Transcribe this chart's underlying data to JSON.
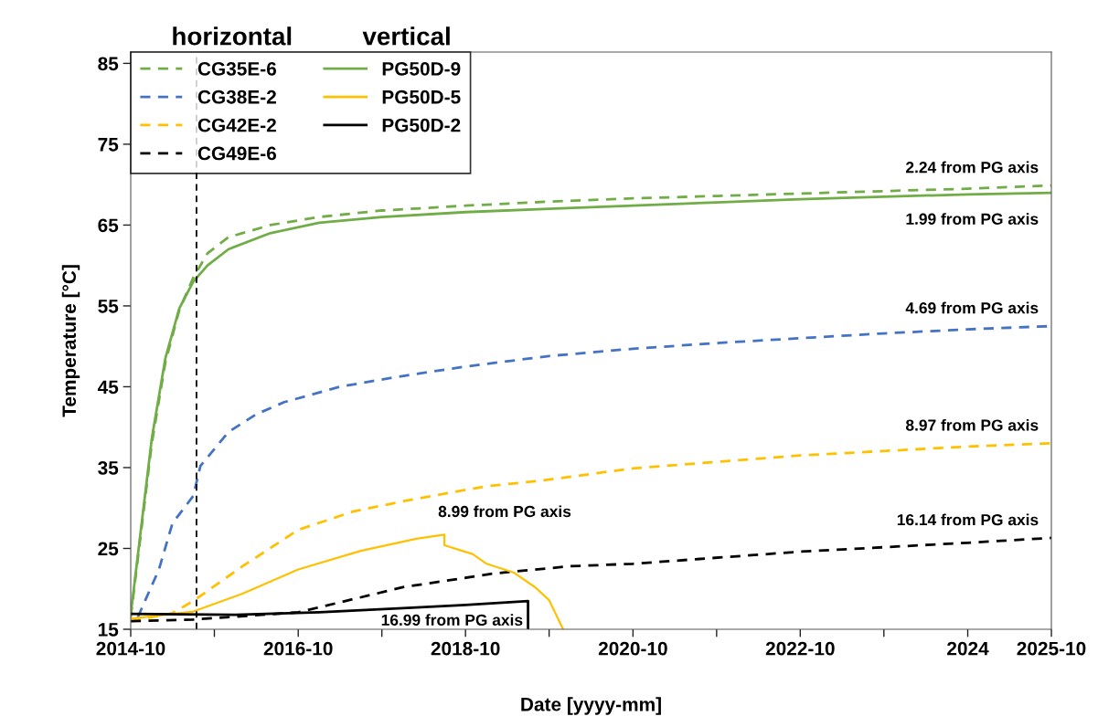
{
  "chart_data": {
    "type": "line",
    "xlabel": "Date [yyyy-mm]",
    "ylabel": "Temperature [°C]",
    "xlim": [
      "2014-10",
      "2025-10"
    ],
    "ylim": [
      15,
      86.4
    ],
    "xticks": [
      "2014-10",
      {
        "value": "2015-10",
        "label": null
      },
      "2016-10",
      {
        "value": "2017-10",
        "label": null
      },
      "2018-10",
      {
        "value": "2019-10",
        "label": null
      },
      "2020-10",
      {
        "value": "2021-10",
        "label": null
      },
      "2022-10",
      {
        "value": "2023-10",
        "label": null
      },
      {
        "value": "2024-10",
        "label": "2024"
      },
      "2025-10"
    ],
    "yticks": [
      15,
      25,
      35,
      45,
      55,
      65,
      75,
      85
    ],
    "grid": false,
    "legend": "top left",
    "series": [
      {
        "name": "CG35E-6",
        "color": "#70ad47",
        "line_style": "dashed",
        "x": [
          "2014-10",
          "2015-01",
          "2015-03",
          "2015-05",
          "2015-07",
          "2015-09",
          "2015-12",
          "2016-06",
          "2017-01",
          "2017-10",
          "2018-10",
          "2019-10",
          "2020-10",
          "2021-10",
          "2022-10",
          "2023-10",
          "2024-10",
          "2025-10"
        ],
        "values": [
          16.5,
          38,
          48,
          54.5,
          58.5,
          61.5,
          63.5,
          65,
          66,
          66.8,
          67.4,
          67.9,
          68.3,
          68.6,
          68.9,
          69.2,
          69.5,
          69.9
        ]
      },
      {
        "name": "CG38E-2",
        "color": "#4472c4",
        "line_style": "dashed",
        "x": [
          "2014-11",
          "2015-02",
          "2015-04",
          "2015-07",
          "2015-08",
          "2015-12",
          "2016-04",
          "2016-08",
          "2017-04",
          "2017-12",
          "2018-10",
          "2019-10",
          "2020-10",
          "2021-10",
          "2022-10",
          "2023-10",
          "2024-10",
          "2025-10"
        ],
        "values": [
          16.5,
          22.4,
          28.1,
          31.5,
          35.2,
          39.4,
          41.6,
          43.1,
          45,
          46.2,
          47.5,
          48.8,
          49.7,
          50.4,
          51,
          51.6,
          52.1,
          52.5
        ]
      },
      {
        "name": "CG42E-2",
        "color": "#ffc000",
        "line_style": "dashed",
        "x": [
          "2014-10",
          "2015-01",
          "2015-04",
          "2015-07",
          "2016-02",
          "2016-10",
          "2017-06",
          "2018-02",
          "2019-01",
          "2019-09",
          "2020-10",
          "2022-10",
          "2024-10",
          "2025-10"
        ],
        "values": [
          16,
          16.5,
          17,
          18.5,
          22.8,
          27.3,
          29.6,
          31,
          32.7,
          33.4,
          34.9,
          36.5,
          37.6,
          38
        ]
      },
      {
        "name": "CG49E-6",
        "color": "#000000",
        "line_style": "dashed",
        "x": [
          "2014-10",
          "2015-07",
          "2016-10",
          "2018-01",
          "2019-02",
          "2020-01",
          "2020-10",
          "2022-10",
          "2024-10",
          "2025-10"
        ],
        "values": [
          16,
          16.2,
          17.1,
          20.2,
          21.9,
          22.8,
          23.1,
          24.6,
          25.7,
          26.3
        ]
      },
      {
        "name": "PG50D-9",
        "color": "#70ad47",
        "line_style": "solid",
        "x": [
          "2014-10",
          "2015-01",
          "2015-03",
          "2015-05",
          "2015-07",
          "2015-09",
          "2015-12",
          "2016-06",
          "2017-01",
          "2017-10",
          "2018-10",
          "2019-10",
          "2020-10",
          "2021-10",
          "2022-10",
          "2023-10",
          "2024-10",
          "2025-10"
        ],
        "values": [
          16.8,
          38.6,
          48.5,
          54.7,
          58,
          60,
          62,
          64,
          65.3,
          66,
          66.6,
          67,
          67.4,
          67.8,
          68.2,
          68.5,
          68.8,
          69
        ]
      },
      {
        "name": "PG50D-5",
        "color": "#ffc000",
        "line_style": "solid",
        "x": [
          "2014-10",
          "2015-07",
          "2016-02",
          "2016-10",
          "2017-07",
          "2018-03",
          "2018-07",
          "2018-07",
          "2018-11",
          "2019-01",
          "2019-05",
          "2019-08",
          "2019-10",
          "2019-12"
        ],
        "values": [
          16.3,
          17.2,
          19.4,
          22.4,
          24.7,
          26.2,
          26.7,
          25.4,
          24.3,
          23.1,
          22,
          20.2,
          18.6,
          15
        ]
      },
      {
        "name": "PG50D-2",
        "color": "#000000",
        "line_style": "solid",
        "x": [
          "2014-10",
          "2016-01",
          "2017-01",
          "2018-01",
          "2018-10",
          "2019-07",
          "2019-07"
        ],
        "values": [
          16.9,
          16.8,
          17.1,
          17.6,
          18,
          18.5,
          15
        ]
      }
    ],
    "ref_lines": [
      {
        "axis": "x",
        "value": "2015-07-15",
        "label": null,
        "color": "#000000",
        "line_style": "dashed"
      }
    ],
    "annotations": [
      "horizontal",
      "vertical",
      {
        "text": "2.24 from PG axis",
        "x": "2025-10",
        "y": 69.9
      },
      {
        "text": "1.99 from PG axis",
        "x": "2025-10",
        "y": 69
      },
      {
        "text": "4.69 from PG axis",
        "x": "2025-10",
        "y": 52.5
      },
      {
        "text": "8.97 from PG axis",
        "x": "2025-10",
        "y": 38
      },
      {
        "text": "16.14 from PG axis",
        "x": "2025-10",
        "y": 26.3
      },
      {
        "text": "8.99 from PG axis",
        "x": "2018-07",
        "y": 26.7
      },
      {
        "text": "16.99 from PG axis",
        "x": "2019-07",
        "y": 15
      }
    ]
  }
}
